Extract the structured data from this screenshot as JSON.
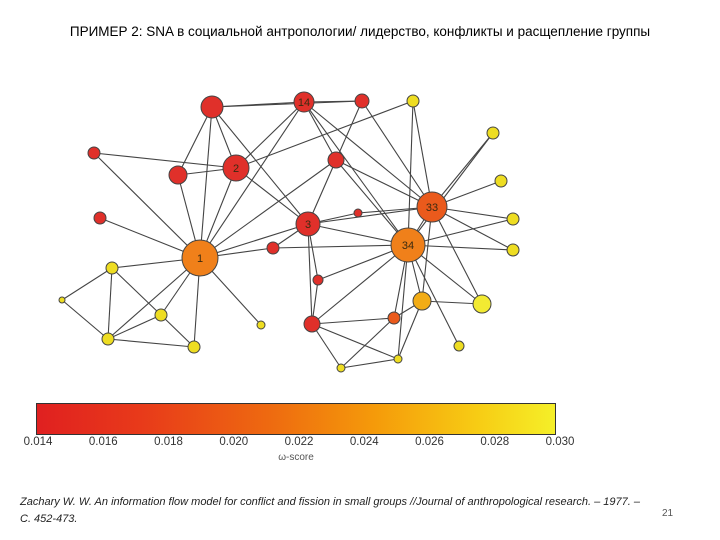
{
  "title": "ПРИМЕР 2: SNA в социальной антропологии/ лидерство, конфликты и расщепление группы",
  "colorbar": {
    "ticks": [
      "0.014",
      "0.016",
      "0.018",
      "0.020",
      "0.022",
      "0.024",
      "0.026",
      "0.028",
      "0.030"
    ],
    "label": "ω-score",
    "colors": [
      "#e02020",
      "#ee6a10",
      "#f5ef28"
    ]
  },
  "citation": "Zachary W. W. An information flow model for conflict and fission in small groups //Journal of anthropological research. – 1977. – С. 452-473.",
  "page_number": "21",
  "graph": {
    "node_labels": {
      "n1": "1",
      "n2": "2",
      "n3": "3",
      "n14": "14",
      "n33": "33",
      "n34": "34"
    }
  }
}
